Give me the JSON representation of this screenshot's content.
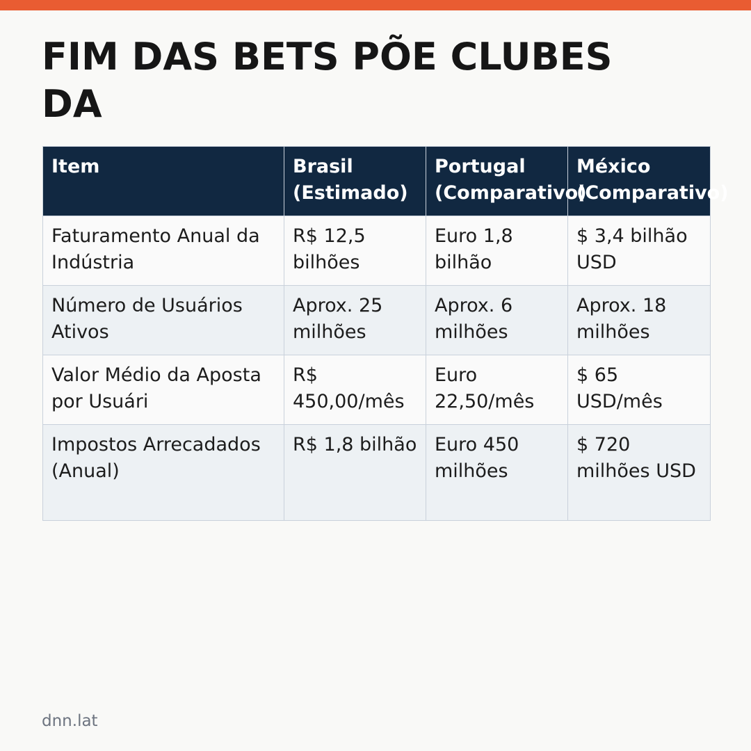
{
  "title": "FIM DAS BETS PÕE CLUBES DA",
  "table": {
    "headers": [
      "Item",
      "Brasil (Estimado)",
      "Portugal (Comparativo)",
      "México (Comparativo)"
    ],
    "rows": [
      [
        "Faturamento Anual da Indústria",
        "R$ 12,5 bilhões",
        "Euro 1,8 bilhão",
        "$ 3,4 bilhão USD"
      ],
      [
        "Número de Usuários Ativos",
        "Aprox. 25 milhões",
        "Aprox. 6 milhões",
        "Aprox. 18 milhões"
      ],
      [
        "Valor Médio da Aposta por Usuári",
        "R$ 450,00/mês",
        "Euro 22,50/mês",
        "$ 65 USD/mês"
      ],
      [
        "Impostos Arrecadados (Anual)",
        "R$ 1,8 bilhão",
        "Euro 450 milhões",
        "$ 720 milhões USD"
      ]
    ]
  },
  "footer": "dnn.lat",
  "colors": {
    "accent_bar": "#e95c32",
    "header_bg": "#112841",
    "row_alt_bg": "#edf1f4"
  }
}
